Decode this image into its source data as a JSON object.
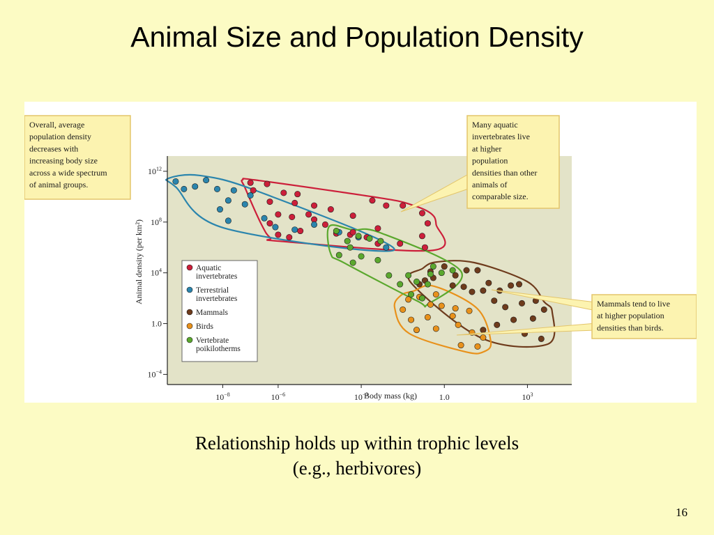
{
  "slide": {
    "title": "Animal Size and Population Density",
    "caption_line1": "Relationship holds up within trophic levels",
    "caption_line2": "(e.g., herbivores)",
    "page_number": "16"
  },
  "chart_data": {
    "type": "scatter",
    "xlabel": "Body mass (kg)",
    "ylabel": "Animal density (per km²)",
    "x_scale": "log",
    "y_scale": "log",
    "x_ticks": [
      {
        "value": -8,
        "label": "10",
        "sup": "−8"
      },
      {
        "value": -6,
        "label": "10",
        "sup": "−6"
      },
      {
        "value": -3,
        "label": "10",
        "sup": "−3"
      },
      {
        "value": 0,
        "label": "1.0",
        "sup": ""
      },
      {
        "value": 3,
        "label": "10",
        "sup": "3"
      }
    ],
    "y_ticks": [
      {
        "value": 12,
        "label": "10",
        "sup": "12"
      },
      {
        "value": 8,
        "label": "10",
        "sup": "8"
      },
      {
        "value": 4,
        "label": "10",
        "sup": "4"
      },
      {
        "value": 0,
        "label": "1.0",
        "sup": ""
      },
      {
        "value": -4,
        "label": "10",
        "sup": "−4"
      }
    ],
    "legend": {
      "placement": "lower-left",
      "entries": [
        {
          "series": 0,
          "lines": [
            "Aquatic",
            "invertebrates"
          ]
        },
        {
          "series": 1,
          "lines": [
            "Terrestrial",
            "invertebrates"
          ]
        },
        {
          "series": 2,
          "lines": [
            "Mammals"
          ]
        },
        {
          "series": 3,
          "lines": [
            "Birds"
          ]
        },
        {
          "series": 4,
          "lines": [
            "Vertebrate",
            "poikilotherms"
          ]
        }
      ]
    },
    "series": [
      {
        "name": "Aquatic invertebrates",
        "color": "#cc1f3a",
        "points": [
          [
            -7.0,
            11.1
          ],
          [
            -6.4,
            11.0
          ],
          [
            -6.9,
            10.5
          ],
          [
            -5.8,
            10.3
          ],
          [
            -5.3,
            10.2
          ],
          [
            -6.3,
            9.6
          ],
          [
            -5.4,
            9.5
          ],
          [
            -4.7,
            9.3
          ],
          [
            -4.1,
            9.0
          ],
          [
            -6.0,
            8.6
          ],
          [
            -5.5,
            8.4
          ],
          [
            -4.9,
            8.6
          ],
          [
            -4.7,
            8.2
          ],
          [
            -3.3,
            8.5
          ],
          [
            -2.6,
            9.7
          ],
          [
            -2.1,
            9.3
          ],
          [
            -1.5,
            9.3
          ],
          [
            -0.8,
            8.7
          ],
          [
            -0.6,
            7.9
          ],
          [
            -0.8,
            6.9
          ],
          [
            -0.7,
            6.0
          ],
          [
            -1.6,
            6.3
          ],
          [
            -2.4,
            6.3
          ],
          [
            -2.8,
            6.8
          ],
          [
            -3.4,
            7.0
          ],
          [
            -3.9,
            7.1
          ],
          [
            -5.2,
            7.3
          ],
          [
            -6.3,
            7.9
          ],
          [
            -5.6,
            6.8
          ],
          [
            -6.0,
            7.0
          ],
          [
            -4.3,
            7.8
          ],
          [
            -2.4,
            7.5
          ],
          [
            -3.3,
            7.2
          ]
        ]
      },
      {
        "name": "Terrestrial invertebrates",
        "color": "#2b85ad",
        "points": [
          [
            -9.4,
            10.6
          ],
          [
            -9.0,
            10.8
          ],
          [
            -8.6,
            11.3
          ],
          [
            -9.7,
            11.2
          ],
          [
            -8.2,
            10.6
          ],
          [
            -7.6,
            10.5
          ],
          [
            -7.0,
            10.1
          ],
          [
            -7.8,
            9.7
          ],
          [
            -7.2,
            9.4
          ],
          [
            -8.1,
            9.0
          ],
          [
            -7.8,
            8.1
          ],
          [
            -6.5,
            8.3
          ],
          [
            -6.1,
            7.6
          ],
          [
            -5.4,
            7.4
          ],
          [
            -4.7,
            7.8
          ],
          [
            -3.8,
            7.2
          ],
          [
            -3.1,
            6.8
          ],
          [
            -2.1,
            6.0
          ]
        ]
      },
      {
        "name": "Mammals",
        "color": "#6e3b1c",
        "points": [
          [
            -0.5,
            4.1
          ],
          [
            0.0,
            4.5
          ],
          [
            0.4,
            3.8
          ],
          [
            0.8,
            4.2
          ],
          [
            1.2,
            4.2
          ],
          [
            1.6,
            3.2
          ],
          [
            2.0,
            2.6
          ],
          [
            2.4,
            3.0
          ],
          [
            2.7,
            3.1
          ],
          [
            -0.7,
            3.4
          ],
          [
            -0.4,
            3.6
          ],
          [
            -0.9,
            3.1
          ],
          [
            0.3,
            3.0
          ],
          [
            0.7,
            2.9
          ],
          [
            1.0,
            2.5
          ],
          [
            1.4,
            2.6
          ],
          [
            1.8,
            1.8
          ],
          [
            2.2,
            1.3
          ],
          [
            2.8,
            1.6
          ],
          [
            3.3,
            1.8
          ],
          [
            3.6,
            1.1
          ],
          [
            3.2,
            0.4
          ],
          [
            2.5,
            0.3
          ],
          [
            1.9,
            -0.1
          ],
          [
            1.4,
            -0.5
          ],
          [
            2.9,
            -0.8
          ],
          [
            3.5,
            -1.2
          ]
        ]
      },
      {
        "name": "Birds",
        "color": "#e8911b",
        "points": [
          [
            -1.3,
            1.9
          ],
          [
            -0.9,
            2.1
          ],
          [
            -0.3,
            2.3
          ],
          [
            -0.5,
            1.5
          ],
          [
            -0.1,
            1.4
          ],
          [
            0.4,
            1.2
          ],
          [
            0.9,
            1.0
          ],
          [
            0.3,
            0.6
          ],
          [
            -0.6,
            0.5
          ],
          [
            -1.2,
            0.3
          ],
          [
            -1.5,
            1.1
          ],
          [
            -1.0,
            -0.5
          ],
          [
            0.5,
            -0.1
          ],
          [
            1.0,
            -0.7
          ],
          [
            1.4,
            -1.1
          ],
          [
            -0.3,
            -0.4
          ],
          [
            0.6,
            -1.7
          ],
          [
            1.2,
            -1.8
          ]
        ]
      },
      {
        "name": "Vertebrate poikilotherms",
        "color": "#5ba82e",
        "points": [
          [
            -3.9,
            7.3
          ],
          [
            -3.5,
            6.5
          ],
          [
            -3.1,
            6.9
          ],
          [
            -2.7,
            6.7
          ],
          [
            -2.3,
            6.5
          ],
          [
            -3.4,
            6.0
          ],
          [
            -3.0,
            5.3
          ],
          [
            -2.4,
            5.0
          ],
          [
            -3.8,
            5.4
          ],
          [
            -3.3,
            4.8
          ],
          [
            -2.0,
            3.8
          ],
          [
            -1.6,
            3.1
          ],
          [
            -1.3,
            3.8
          ],
          [
            -1.0,
            3.3
          ],
          [
            -0.5,
            3.9
          ],
          [
            -0.1,
            4.0
          ],
          [
            0.3,
            4.2
          ],
          [
            -0.6,
            3.1
          ],
          [
            -1.2,
            2.3
          ],
          [
            -0.8,
            2.0
          ],
          [
            -0.4,
            4.5
          ]
        ]
      }
    ],
    "callouts": [
      {
        "lines": [
          "Overall, average",
          "population density",
          "decreases with",
          "increasing body size",
          "across a wide spectrum",
          "of animal groups."
        ]
      },
      {
        "lines": [
          "Many aquatic",
          "invertebrates live",
          "at higher",
          "population",
          "densities than other",
          "animals of",
          "comparable size."
        ]
      },
      {
        "lines": [
          "Mammals tend to live",
          "at higher population",
          "densities than birds."
        ]
      }
    ],
    "colors": {
      "plot_background": "#e3e3c8",
      "callout_fill": "#fcf3b0",
      "callout_border": "#e3c56a"
    }
  }
}
